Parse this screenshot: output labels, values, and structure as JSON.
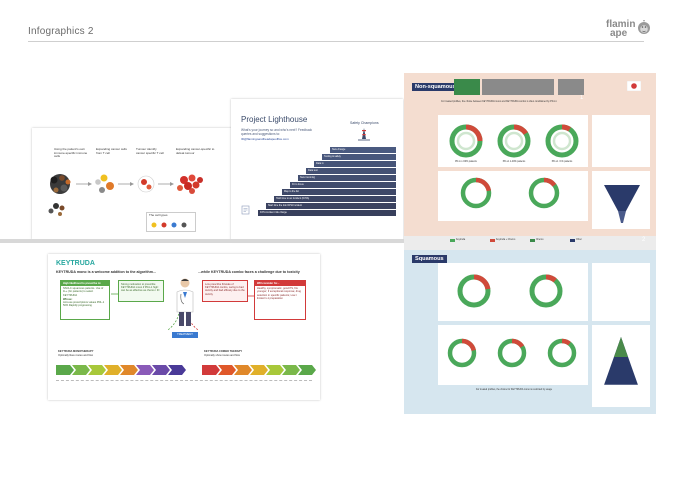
{
  "header": {
    "title": "Infographics 2",
    "logo_line1": "flamin",
    "logo_line2": "ape"
  },
  "colors": {
    "teal": "#29a8a0",
    "keytruda_green": "#5aa84a",
    "keytruda_red": "#d23a3a",
    "navy": "#3a4a6a",
    "poster_peach": "#f4ddd0",
    "poster_blue": "#d6e6ef",
    "ring_green": "#4aa85a",
    "ring_red": "#d04a3a"
  },
  "thumb1": {
    "cap1": "Using the patient's own immune-specific immune cells",
    "cap2": "Expanding cancer cells from T cell",
    "cap3": "Tumour identify cancer specific T cell",
    "cap4": "Expanding cancer-specific to defeat tumour",
    "legend_title": "The cell types"
  },
  "thumb2": {
    "title": "Project Lighthouse",
    "subtitle": "What's your journey so and who's next? Feedback queries and suggestions to:",
    "link": "ID@flamingoandheadapeoffice.com",
    "staircase_title": "Safety Champions",
    "steps": [
      "New change",
      "Testing & safety",
      "Data in",
      "Data test",
      "New incoming",
      "Fit to focus",
      "Map to the list",
      "Hold time to an Incident (ICHA)",
      "Start time the risk ICHA Incident",
      "ICHA incident risk charge"
    ]
  },
  "thumb3": {
    "brand": "KEYTRUDA",
    "left_heading": "KEYTRUDA mono is a welcome addition to the algorithm...",
    "right_heading": "...while KEYTRUDA combo faces a challenge due to toxicity",
    "green_box_title": "High likelihood to prescribe to:",
    "green_box_text": "NSCLC squamous patients. Use of 1L+ (for patients) to select KEYTRUDA",
    "green_box_note": "Whose:",
    "green_box_bullets": "Anti-use prescriptions values PDL-1 50% Rapidly progressing",
    "outcome_box_text": "Strong motivation to prescribe KEYTRUDA mono if PD-L1 high: can be as effective as chemo / IO",
    "red_box_text": "Low prescribe fit/scale of KEYTRUDA combo, owing to bad toxicity and bad efficacy due to the toxicity",
    "red_box_title": "Will consider for...",
    "red_box_bullets": "Healthy, symptomatic, good PS, fits younger; if exceptional response; drug selection in specific patients; Low / limited 1-1 preparation",
    "center_label": "TREATMENT",
    "foot_left": "KEYTRUDA MONOTHERAPY",
    "foot_left_sub": "Optimally likes routes and flow",
    "foot_right": "KEYTRUDA COMBO THERAPY",
    "foot_right_sub": "Optimally show routes and flow"
  },
  "thumb4": {
    "nonsq_title": "Non-squamous",
    "sq_title": "Squamous",
    "section_num_1": "1",
    "section_num_2": "2",
    "section_num_3": "3",
    "nonsq_caption": "For treated profiles, the choice between KEYTRUDA mono and KEYTRUDA combo is often conditioned by PD-L1",
    "sq_caption": "For treated profiles, the choice for KEYTRUDA mono is restricted by usage",
    "ring_label_1": "PD-L1 ≥50% patients",
    "ring_label_2": "PD-L1 1-49% patients",
    "ring_label_3": "PD-L1 <1% patients",
    "legend_1": "Keytruda",
    "legend_2": "Keytruda + Chemo",
    "legend_3": "Chemo",
    "legend_4": "Other"
  }
}
